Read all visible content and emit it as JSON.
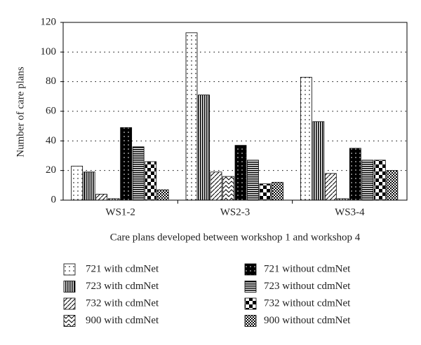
{
  "chart_data": {
    "type": "bar",
    "y_label": "Number of care plans",
    "x_label": "Care plans developed between workshop 1 and workshop 4",
    "categories": [
      "WS1-2",
      "WS2-3",
      "WS3-4"
    ],
    "ylim": [
      0,
      120
    ],
    "yticks": [
      0,
      20,
      40,
      60,
      80,
      100,
      120
    ],
    "grid": true,
    "series": [
      {
        "name": "721 with cdmNet",
        "pattern": "dots",
        "values": [
          23,
          113,
          83
        ]
      },
      {
        "name": "723 with cdmNet",
        "pattern": "vlines",
        "values": [
          19,
          71,
          53
        ]
      },
      {
        "name": "732 with cdmNet",
        "pattern": "diag",
        "values": [
          4,
          19,
          18
        ]
      },
      {
        "name": "900 with cdmNet",
        "pattern": "wave",
        "values": [
          1,
          16,
          1
        ]
      },
      {
        "name": "721 without cdmNet",
        "pattern": "blackdots",
        "values": [
          49,
          37,
          35
        ]
      },
      {
        "name": "723 without cdmNet",
        "pattern": "hlines",
        "values": [
          36,
          27,
          27
        ]
      },
      {
        "name": "732 without cdmNet",
        "pattern": "bigcheck",
        "values": [
          26,
          11,
          27
        ]
      },
      {
        "name": "900 without cdmNet",
        "pattern": "smallcheck",
        "values": [
          7,
          12,
          20
        ]
      }
    ]
  }
}
